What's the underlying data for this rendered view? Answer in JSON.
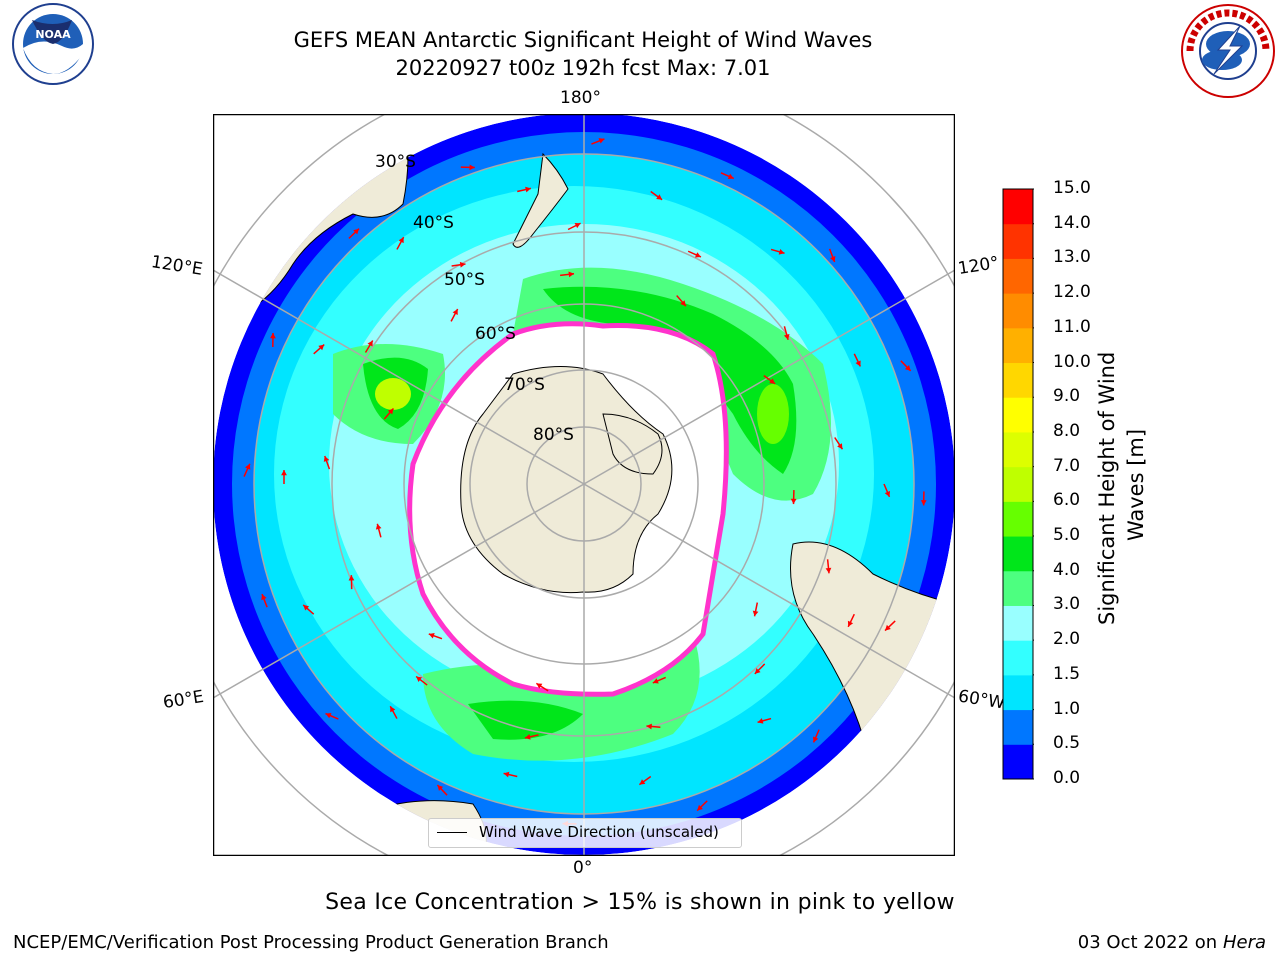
{
  "title": {
    "line1": "GEFS MEAN Antarctic Significant Height of Wind Waves",
    "line2": "20220927 t00z 192h fcst   Max: 7.01"
  },
  "logos": {
    "left": {
      "name": "noaa-logo",
      "text": "NOAA",
      "ring_text": "NATIONAL OCEANIC AND ATMOSPHERIC ADMINISTRATION · U.S. DEPARTMENT OF COMMERCE"
    },
    "right": {
      "name": "nws-logo",
      "ring_text": "NATIONAL WEATHER SERVICE"
    }
  },
  "map": {
    "projection": "south polar stereographic",
    "lon_labels": [
      "180°",
      "120°E",
      "120°",
      "60°E",
      "60°W",
      "0°"
    ],
    "lat_labels": [
      "30°S",
      "40°S",
      "50°S",
      "60°S",
      "70°S",
      "80°S"
    ],
    "legend_label": "Wind Wave Direction (unscaled)",
    "colors": {
      "land": "#efebd8",
      "ice_edge": "#ff33cc",
      "arrow": "#ff0000"
    }
  },
  "colorbar": {
    "label": "Significant Height of Wind Waves [m]",
    "ticks": [
      "15.0",
      "14.0",
      "13.0",
      "12.0",
      "11.0",
      "10.0",
      "9.0",
      "8.0",
      "7.0",
      "6.0",
      "5.0",
      "4.0",
      "3.0",
      "2.0",
      "1.5",
      "1.0",
      "0.5",
      "0.0"
    ],
    "colors": [
      "#0000ff",
      "#0077ff",
      "#00e5ff",
      "#33ffff",
      "#99ffff",
      "#4dff80",
      "#00e61a",
      "#66ff00",
      "#bfff00",
      "#ddff00",
      "#ffff00",
      "#ffd700",
      "#ffb000",
      "#ff8c00",
      "#ff6600",
      "#ff3300",
      "#ff0000"
    ]
  },
  "caption": "Sea Ice Concentration > 15% is shown in pink to yellow",
  "footer": {
    "left": "NCEP/EMC/Verification Post Processing Product Generation Branch",
    "right_date": "03 Oct 2022 on ",
    "right_host": "Hera"
  }
}
